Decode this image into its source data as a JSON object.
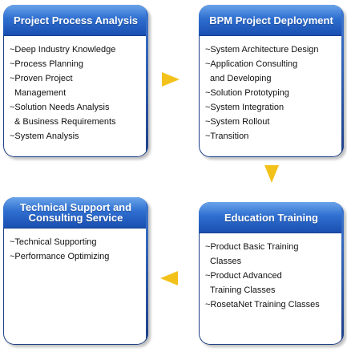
{
  "boxes": {
    "top_left": {
      "title": "Project Process Analysis",
      "items": [
        "~Deep Industry Knowledge",
        "~Process Planning",
        "~Proven Project",
        "  Management",
        "~Solution Needs Analysis",
        "  & Business Requirements",
        "~System Analysis"
      ]
    },
    "top_right": {
      "title": "BPM Project Deployment",
      "items": [
        "~System Architecture Design",
        "~Application Consulting",
        "  and  Developing",
        "~Solution Prototyping",
        "~System Integration",
        "~System Rollout",
        "~Transition"
      ]
    },
    "bottom_left": {
      "title": "Technical Support and Consulting Service",
      "items": [
        "~Technical Supporting",
        "~Performance Optimizing"
      ]
    },
    "bottom_right": {
      "title": "Education Training",
      "items": [
        "~Product Basic Training",
        "  Classes",
        "~Product Advanced",
        "  Training Classes",
        "~RosetaNet Training Classes"
      ]
    }
  },
  "colors": {
    "header_blue": "#2f6fd0",
    "border_navy": "#1d3f86",
    "arrow_yellow": "#f3c21a"
  }
}
